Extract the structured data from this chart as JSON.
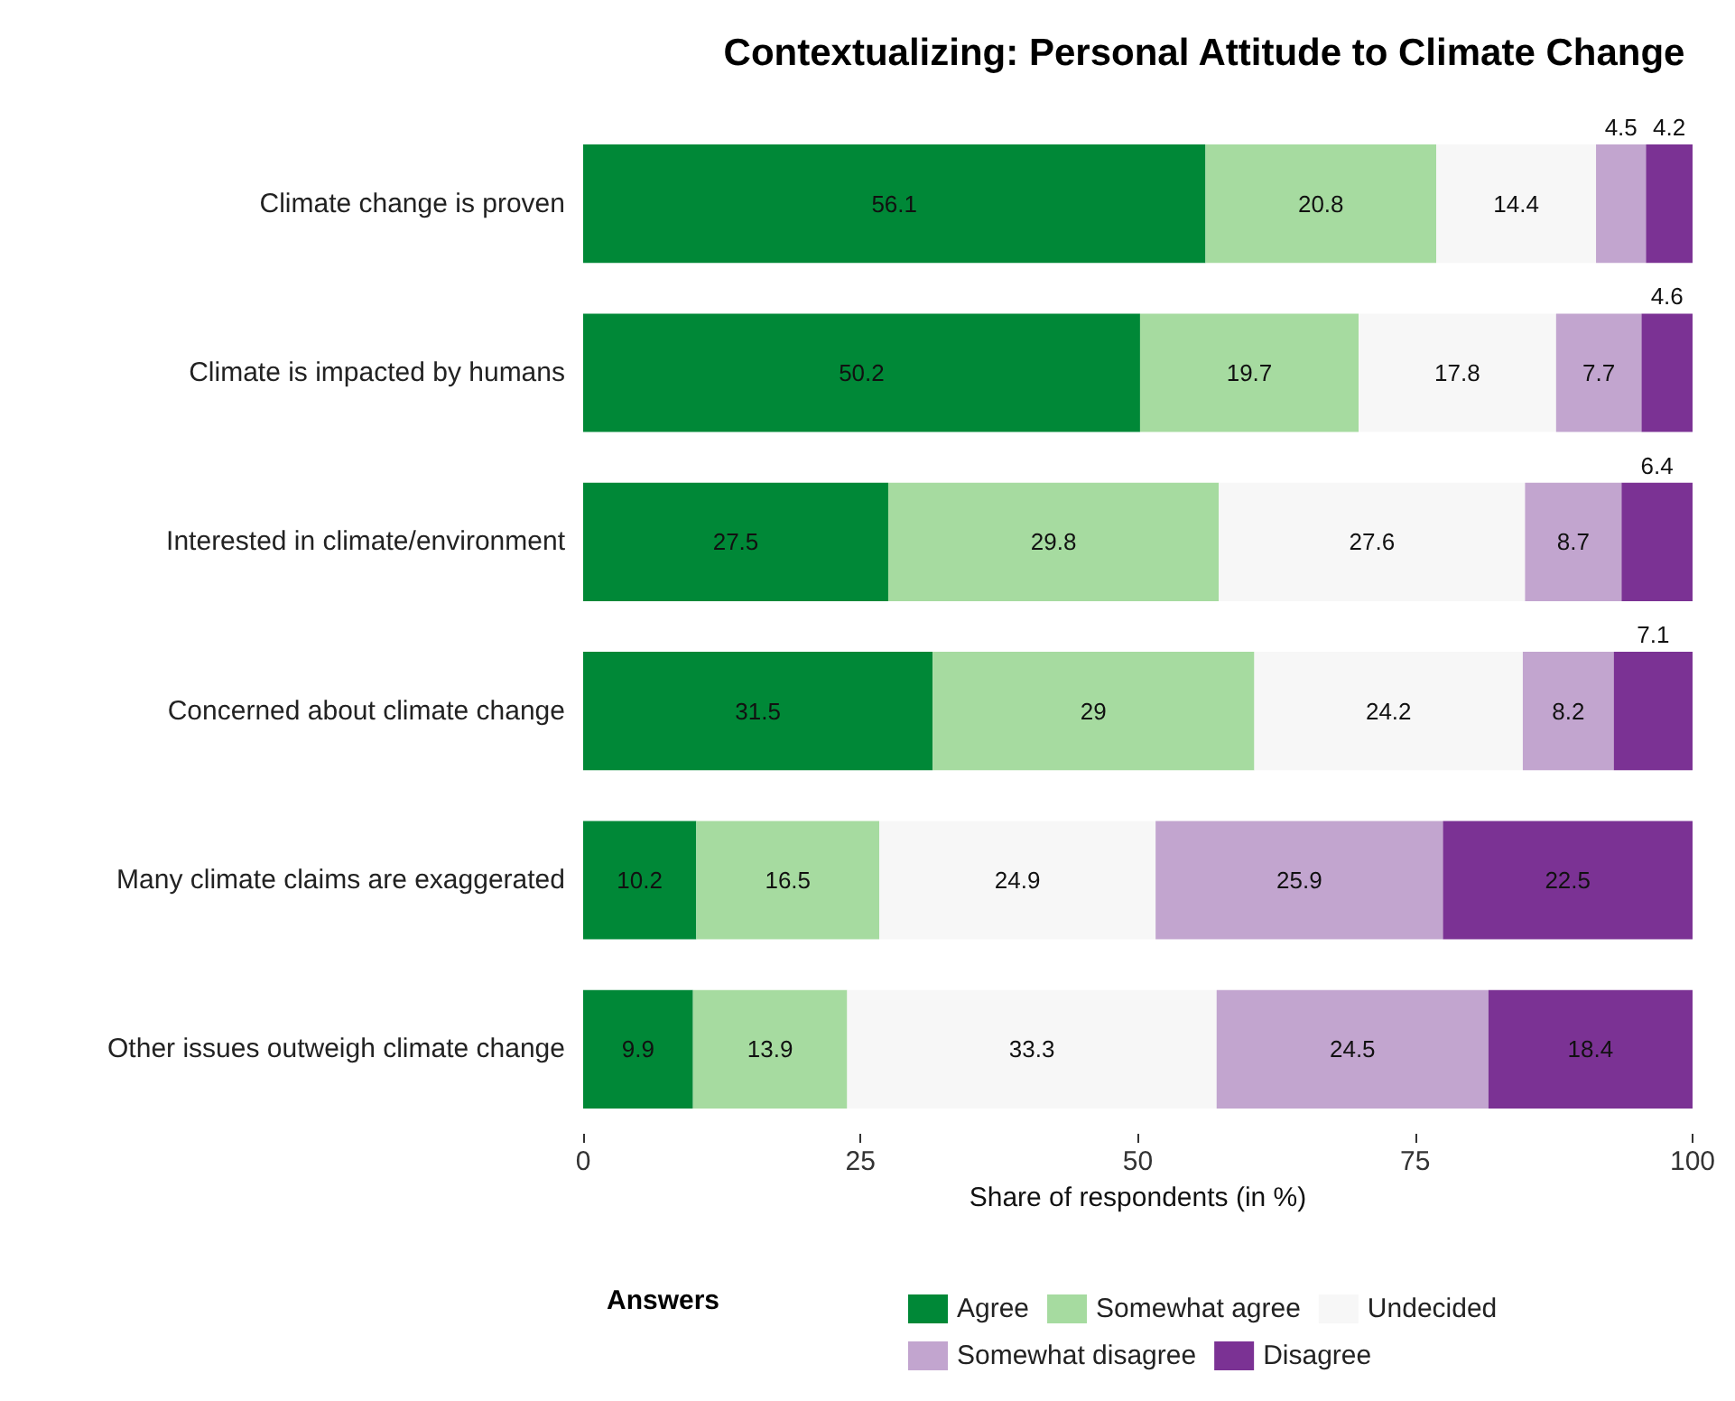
{
  "chart_data": {
    "type": "bar",
    "orientation": "horizontal",
    "stacked": true,
    "title": "Contextualizing: Personal Attitude to Climate Change",
    "xlabel": "Share of respondents (in %)",
    "legend_title": "Answers",
    "categories": [
      "Climate change is proven",
      "Climate is impacted by humans",
      "Interested in climate/environment",
      "Concerned about climate change",
      "Many climate claims are exaggerated",
      "Other issues outweigh climate change"
    ],
    "series": [
      {
        "name": "Agree",
        "color": "#008837",
        "values": [
          56.1,
          50.2,
          27.5,
          31.5,
          10.2,
          9.9
        ]
      },
      {
        "name": "Somewhat agree",
        "color": "#a6dba0",
        "values": [
          20.8,
          19.7,
          29.8,
          29,
          16.5,
          13.9
        ]
      },
      {
        "name": "Undecided",
        "color": "#f7f7f7",
        "values": [
          14.4,
          17.8,
          27.6,
          24.2,
          24.9,
          33.3
        ]
      },
      {
        "name": "Somewhat disagree",
        "color": "#c2a5cf",
        "values": [
          4.5,
          7.7,
          8.7,
          8.2,
          25.9,
          24.5
        ]
      },
      {
        "name": "Disagree",
        "color": "#7b3294",
        "values": [
          4.2,
          4.6,
          6.4,
          7.1,
          22.5,
          18.4
        ]
      }
    ],
    "xlim": [
      0,
      100
    ],
    "xticks": [
      0,
      25,
      50,
      75,
      100
    ],
    "grid": false,
    "legend": "bottom",
    "data_labels": true
  }
}
